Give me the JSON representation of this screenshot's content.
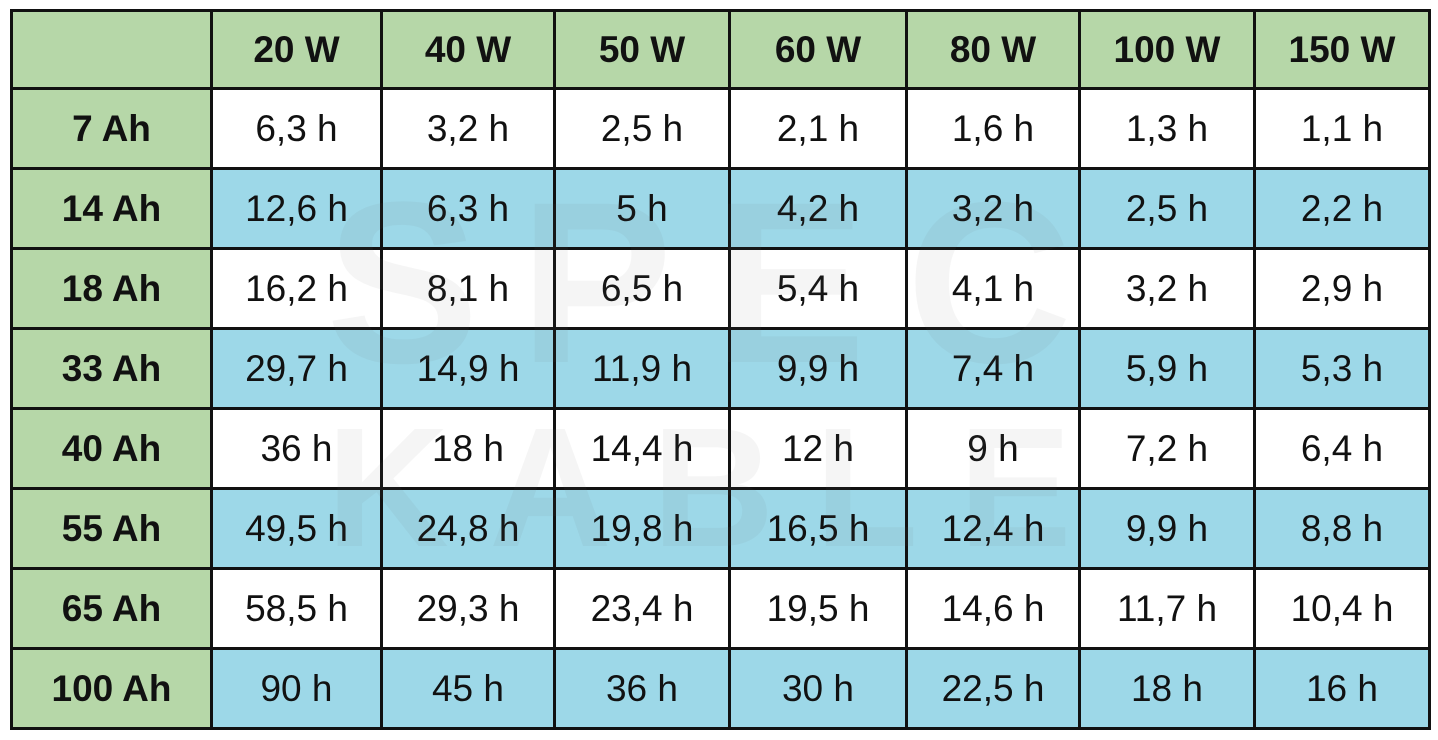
{
  "table": {
    "columns": [
      "20 W",
      "40 W",
      "50 W",
      "60 W",
      "80 W",
      "100 W",
      "150 W"
    ],
    "rows": [
      {
        "label": "7 Ah",
        "cells": [
          "6,3 h",
          "3,2 h",
          "2,5 h",
          "2,1 h",
          "1,6 h",
          "1,3 h",
          "1,1 h"
        ]
      },
      {
        "label": "14 Ah",
        "cells": [
          "12,6 h",
          "6,3 h",
          "5 h",
          "4,2 h",
          "3,2 h",
          "2,5 h",
          "2,2 h"
        ]
      },
      {
        "label": "18 Ah",
        "cells": [
          "16,2 h",
          "8,1 h",
          "6,5 h",
          "5,4 h",
          "4,1 h",
          "3,2 h",
          "2,9 h"
        ]
      },
      {
        "label": "33 Ah",
        "cells": [
          "29,7 h",
          "14,9 h",
          "11,9 h",
          "9,9 h",
          "7,4 h",
          "5,9 h",
          "5,3 h"
        ]
      },
      {
        "label": "40 Ah",
        "cells": [
          "36 h",
          "18 h",
          "14,4 h",
          "12 h",
          "9 h",
          "7,2 h",
          "6,4 h"
        ]
      },
      {
        "label": "55 Ah",
        "cells": [
          "49,5 h",
          "24,8 h",
          "19,8 h",
          "16,5 h",
          "12,4 h",
          "9,9 h",
          "8,8 h"
        ]
      },
      {
        "label": "65 Ah",
        "cells": [
          "58,5 h",
          "29,3 h",
          "23,4 h",
          "19,5 h",
          "14,6 h",
          "11,7 h",
          "10,4 h"
        ]
      },
      {
        "label": "100 Ah",
        "cells": [
          "90 h",
          "45 h",
          "36 h",
          "30 h",
          "22,5 h",
          "18 h",
          "16 h"
        ]
      }
    ]
  },
  "watermark": [
    "SPEC",
    "KABLE"
  ]
}
